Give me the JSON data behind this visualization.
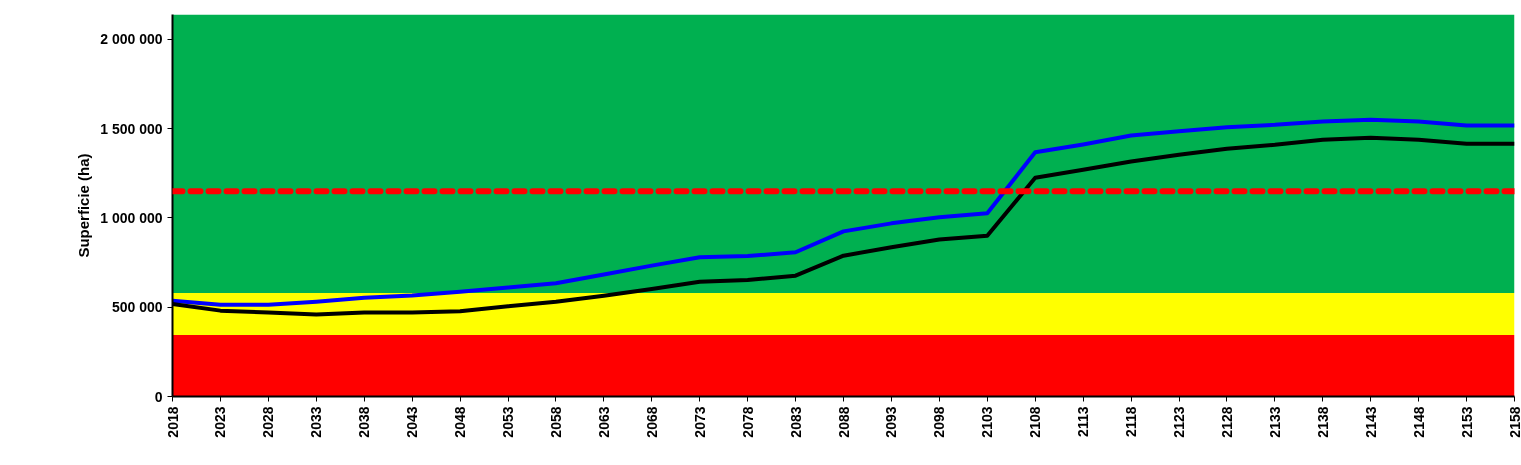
{
  "chart_data": {
    "type": "line",
    "ylabel": "Superficie (ha)",
    "x": [
      2018,
      2023,
      2028,
      2033,
      2038,
      2043,
      2048,
      2053,
      2058,
      2063,
      2068,
      2073,
      2078,
      2083,
      2088,
      2093,
      2098,
      2103,
      2108,
      2113,
      2118,
      2123,
      2128,
      2133,
      2138,
      2143,
      2148,
      2153,
      2158
    ],
    "series": [
      {
        "color": "#0000ff",
        "values": [
          537000,
          514000,
          514000,
          531000,
          553000,
          566000,
          587000,
          610000,
          634000,
          683000,
          733000,
          780000,
          787000,
          808000,
          925000,
          970000,
          1004000,
          1026000,
          1368000,
          1412000,
          1462000,
          1486000,
          1509000,
          1522000,
          1541000,
          1550000,
          1541000,
          1518000,
          1518000
        ]
      },
      {
        "color": "#000000",
        "values": [
          518000,
          481000,
          471000,
          460000,
          471000,
          471000,
          477000,
          505000,
          531000,
          565000,
          602000,
          643000,
          653000,
          677000,
          789000,
          836000,
          879000,
          901000,
          1225000,
          1270000,
          1316000,
          1354000,
          1388000,
          1410000,
          1438000,
          1449000,
          1438000,
          1416000,
          1416000
        ]
      }
    ],
    "xlim": [
      2018,
      2158
    ],
    "xticks": [
      2018,
      2023,
      2028,
      2033,
      2038,
      2043,
      2048,
      2053,
      2058,
      2063,
      2068,
      2073,
      2078,
      2083,
      2088,
      2093,
      2098,
      2103,
      2108,
      2113,
      2118,
      2123,
      2128,
      2133,
      2138,
      2143,
      2148,
      2153,
      2158
    ],
    "ylim": [
      0,
      2140000
    ],
    "yticks": [
      {
        "value": 0,
        "label": "0"
      },
      {
        "value": 500000,
        "label": "500 000"
      },
      {
        "value": 1000000,
        "label": "1 000 000"
      },
      {
        "value": 1500000,
        "label": "1 500 000"
      },
      {
        "value": 2000000,
        "label": "2 000 000"
      }
    ],
    "bands": [
      {
        "axis": "y",
        "from": 0,
        "to": 345000,
        "color": "#ff0000"
      },
      {
        "axis": "y",
        "from": 345000,
        "to": 580000,
        "color": "#ffff00"
      },
      {
        "axis": "y",
        "from": 580000,
        "to": 2140000,
        "color": "#00b050"
      }
    ],
    "ref_lines": [
      {
        "axis": "y",
        "value": 1150000,
        "color": "#ff0000",
        "line_style": "dashed"
      }
    ],
    "marker": "none",
    "line_style": "solid"
  }
}
